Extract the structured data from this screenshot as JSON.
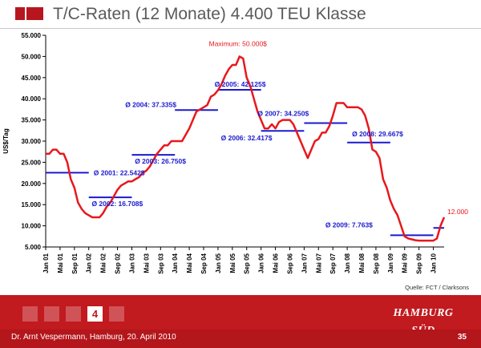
{
  "header": {
    "title": "T/C-Raten (12 Monate) 4.400 TEU Klasse"
  },
  "colors": {
    "accent": "#c11a1f",
    "series": "#e8181d",
    "average": "#1a1ad0",
    "max_label": "#e8181d"
  },
  "chart_data": {
    "type": "line",
    "title": "T/C-Raten (12 Monate) 4.400 TEU Klasse",
    "ylabel": "US$/Tag",
    "xlabel": "",
    "ylim": [
      5000,
      55000
    ],
    "yticks": [
      "5.000",
      "10.000",
      "15.000",
      "20.000",
      "25.000",
      "30.000",
      "35.000",
      "40.000",
      "45.000",
      "50.000",
      "55.000"
    ],
    "xticks": [
      "Jan 01",
      "Mai 01",
      "Sep 01",
      "Jan 02",
      "Mai 02",
      "Sep 02",
      "Jan 03",
      "Mai 03",
      "Sep 03",
      "Jan 04",
      "Mai 04",
      "Sep 04",
      "Jan 05",
      "Mai 05",
      "Sep 05",
      "Jan 06",
      "Mai 06",
      "Sep 06",
      "Jan 07",
      "Mai 07",
      "Sep 07",
      "Jan 08",
      "Mai 08",
      "Sep 08",
      "Jan 09",
      "Mai 09",
      "Sep 09",
      "Jan 10"
    ],
    "grid": false,
    "series": [
      {
        "name": "",
        "x": [
          0,
          1,
          2,
          3,
          4,
          5,
          6,
          7,
          8,
          9,
          10,
          11,
          12,
          13,
          14,
          15,
          16,
          17,
          18,
          19,
          20,
          21,
          22,
          23,
          24,
          25,
          26,
          27,
          28,
          29,
          30,
          31,
          32,
          33,
          34,
          35,
          36,
          37,
          38,
          39,
          40,
          41,
          42,
          43,
          44,
          45,
          46,
          47,
          48,
          49,
          50,
          51,
          52,
          53,
          54,
          55,
          56,
          57,
          58,
          59,
          60,
          61,
          62,
          63,
          64,
          65,
          66,
          67,
          68,
          69,
          70,
          71,
          72,
          73,
          74,
          75,
          76,
          77,
          78,
          79,
          80,
          81,
          82,
          83,
          84,
          85,
          86,
          87,
          88,
          89,
          90,
          91,
          92,
          93,
          94,
          95,
          96,
          97,
          98,
          99,
          100,
          101,
          102,
          103,
          104,
          105,
          106,
          107,
          108,
          109,
          110,
          111
        ],
        "values": [
          27000,
          27000,
          28000,
          28000,
          27000,
          27000,
          25000,
          21000,
          19000,
          15500,
          14000,
          13000,
          12500,
          12000,
          12000,
          12000,
          13000,
          14500,
          15500,
          17000,
          18500,
          19500,
          20000,
          20500,
          20500,
          21000,
          21500,
          22500,
          23000,
          24000,
          25500,
          27000,
          28000,
          29000,
          29000,
          30000,
          30000,
          30000,
          30000,
          31500,
          33000,
          35000,
          37000,
          37500,
          38000,
          38500,
          40500,
          41000,
          42000,
          43500,
          45500,
          47000,
          48000,
          48000,
          50000,
          49500,
          45000,
          43000,
          40000,
          37000,
          35000,
          33000,
          33000,
          34000,
          33000,
          34500,
          35000,
          35000,
          35000,
          34000,
          32000,
          30000,
          28000,
          26000,
          28000,
          30000,
          30500,
          32000,
          32000,
          33500,
          36000,
          39000,
          39000,
          39000,
          38000,
          38000,
          38000,
          38000,
          37500,
          36000,
          33000,
          28000,
          27500,
          26000,
          21000,
          19000,
          16000,
          14000,
          12500,
          10000,
          7500,
          7000,
          6800,
          6600,
          6500,
          6500,
          6500,
          6500,
          6500,
          7000,
          10000,
          12000
        ]
      }
    ],
    "averages": [
      {
        "label": "Ø 2001: 22.542$",
        "value": 22542,
        "x_start": 0,
        "x_end": 12
      },
      {
        "label": "Ø 2002: 16.708$",
        "value": 16708,
        "x_start": 12,
        "x_end": 24
      },
      {
        "label": "Ø 2003: 26.750$",
        "value": 26750,
        "x_start": 24,
        "x_end": 36
      },
      {
        "label": "Ø 2004: 37.335$",
        "value": 37335,
        "x_start": 36,
        "x_end": 48
      },
      {
        "label": "Ø 2005: 42.125$",
        "value": 42125,
        "x_start": 48,
        "x_end": 60
      },
      {
        "label": "Ø 2006: 32.417$",
        "value": 32417,
        "x_start": 60,
        "x_end": 72
      },
      {
        "label": "Ø 2007: 34.250$",
        "value": 34250,
        "x_start": 72,
        "x_end": 84
      },
      {
        "label": "Ø 2008: 29.667$",
        "value": 29667,
        "x_start": 84,
        "x_end": 96
      },
      {
        "label": "Ø 2009: 7.763$",
        "value": 7763,
        "x_start": 96,
        "x_end": 108
      },
      {
        "label": "",
        "value": 9500,
        "x_start": 108,
        "x_end": 111
      }
    ],
    "annotations": [
      {
        "text": "Maximum: 50.000$",
        "x": 54,
        "y": 50000
      },
      {
        "text": "12.000",
        "x": 111,
        "y": 12000
      }
    ],
    "source": "Quelle: FCT / Clarksons"
  },
  "pagination": {
    "items": [
      "",
      "",
      "",
      "4",
      ""
    ],
    "active_index": 3
  },
  "brand": {
    "text": "HAMBURG SÜD"
  },
  "footer": {
    "left": "Dr. Arnt Vespermann, Hamburg, 20. April 2010",
    "right": "35"
  }
}
